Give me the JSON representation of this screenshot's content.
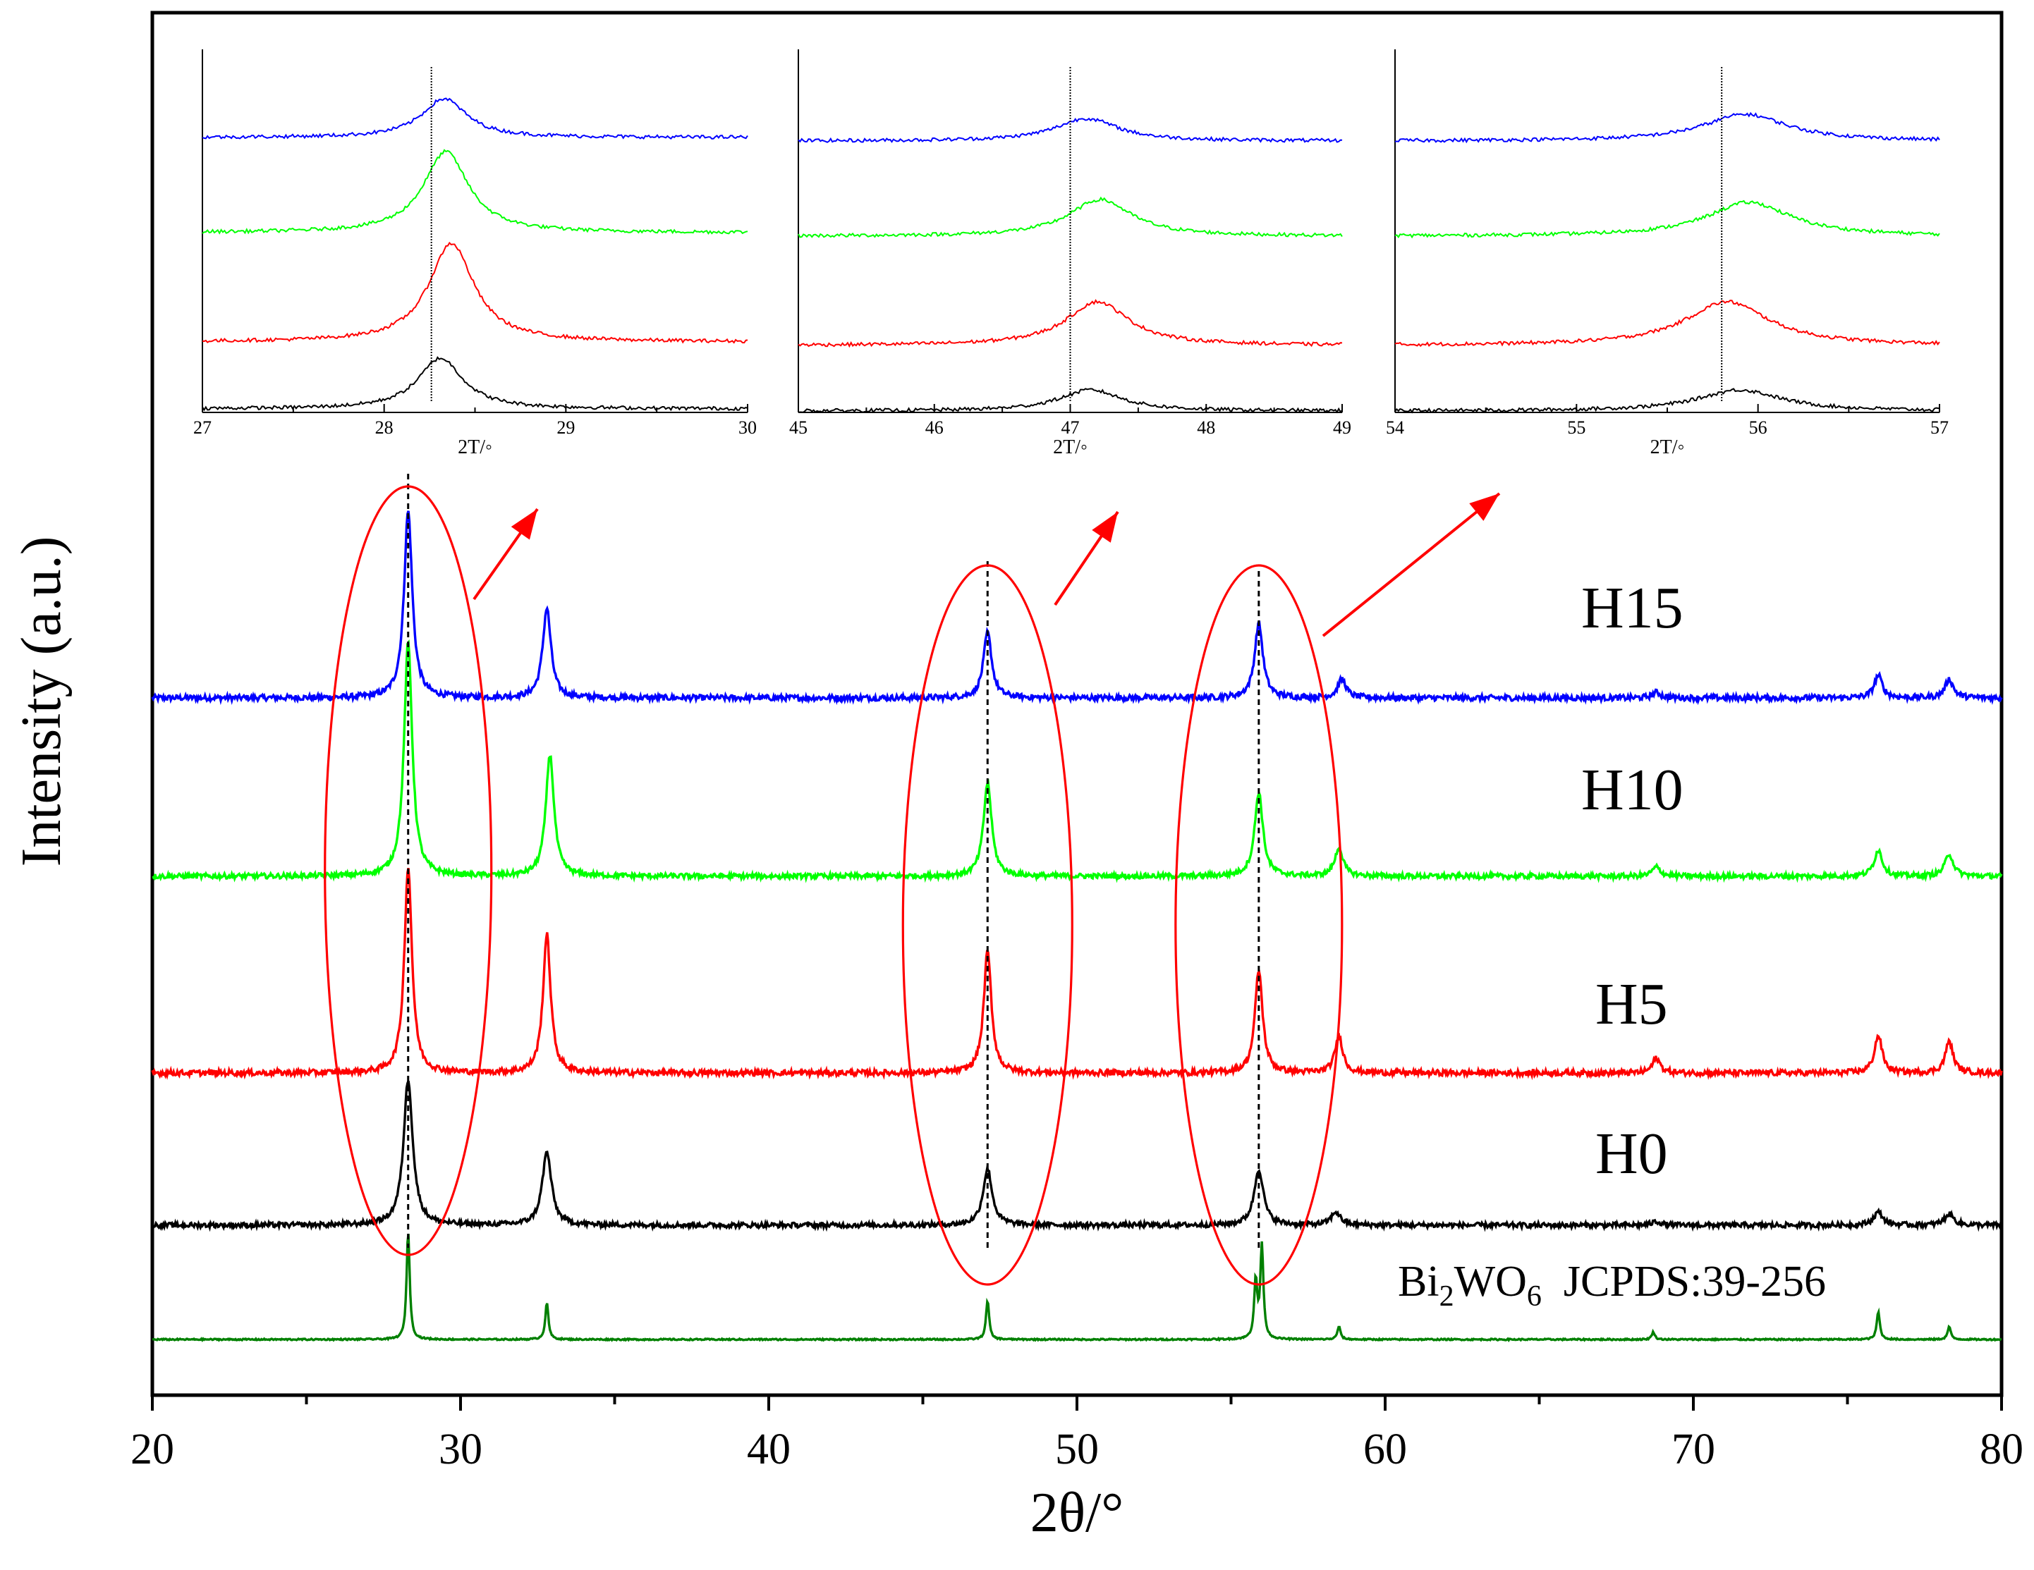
{
  "chart_data": {
    "type": "line",
    "title": "",
    "xlabel": "2θ/°",
    "ylabel": "Intensity (a.u.)",
    "xlim": [
      20,
      80
    ],
    "xticks": [
      20,
      30,
      40,
      50,
      60,
      70,
      80
    ],
    "series": [
      {
        "name": "H15",
        "color": "#0000ff",
        "peaks": [
          [
            28.3,
            1.0
          ],
          [
            32.8,
            0.48
          ],
          [
            47.1,
            0.35
          ],
          [
            55.9,
            0.4
          ],
          [
            58.6,
            0.1
          ],
          [
            68.8,
            0.03
          ],
          [
            76.0,
            0.12
          ],
          [
            78.3,
            0.1
          ]
        ]
      },
      {
        "name": "H10",
        "color": "#00ff00",
        "peaks": [
          [
            28.3,
            1.25
          ],
          [
            32.9,
            0.65
          ],
          [
            47.1,
            0.5
          ],
          [
            55.9,
            0.45
          ],
          [
            58.5,
            0.15
          ],
          [
            68.8,
            0.05
          ],
          [
            76.0,
            0.14
          ],
          [
            78.3,
            0.12
          ]
        ]
      },
      {
        "name": "H5",
        "color": "#ff0000",
        "peaks": [
          [
            28.3,
            1.1
          ],
          [
            32.8,
            0.74
          ],
          [
            47.1,
            0.65
          ],
          [
            55.9,
            0.55
          ],
          [
            58.5,
            0.2
          ],
          [
            68.8,
            0.08
          ],
          [
            76.0,
            0.2
          ],
          [
            78.3,
            0.17
          ]
        ]
      },
      {
        "name": "H0",
        "color": "#000000",
        "peaks": [
          [
            28.3,
            0.78
          ],
          [
            32.8,
            0.39
          ],
          [
            47.1,
            0.3
          ],
          [
            55.9,
            0.3
          ],
          [
            58.4,
            0.07
          ],
          [
            68.8,
            0.02
          ],
          [
            76.0,
            0.07
          ],
          [
            78.3,
            0.06
          ]
        ]
      },
      {
        "name": "Bi2WO6 JCPDS:39-256",
        "color": "#008000",
        "peaks": [
          [
            28.3,
            0.58
          ],
          [
            32.8,
            0.2
          ],
          [
            47.1,
            0.21
          ],
          [
            55.8,
            0.31
          ],
          [
            56.0,
            0.5
          ],
          [
            58.5,
            0.07
          ],
          [
            68.7,
            0.04
          ],
          [
            76.0,
            0.15
          ],
          [
            78.3,
            0.07
          ]
        ]
      }
    ],
    "labels": [
      "H15",
      "H10",
      "H5",
      "H0"
    ],
    "reference_label": {
      "base": "Bi",
      "sub1": "2",
      "mid": "WO",
      "sub2": "6",
      "tail": "  JCPDS:39-256"
    },
    "reference_lines": [
      28.3,
      47.1,
      55.9
    ],
    "insets": [
      {
        "xlim": [
          27,
          30
        ],
        "ticks": [
          27,
          28,
          29,
          30
        ],
        "ref_line": 28.26,
        "xlabel": "2T/◦",
        "peak_center": 28.3
      },
      {
        "xlim": [
          45,
          49
        ],
        "ticks": [
          45,
          46,
          47,
          48,
          49
        ],
        "ref_line": 47.0,
        "xlabel": "2T/◦",
        "peak_center": 47.1
      },
      {
        "xlim": [
          54,
          57
        ],
        "ticks": [
          54,
          55,
          56,
          57
        ],
        "ref_line": 55.8,
        "xlabel": "2T/◦",
        "peak_center": 55.85
      }
    ]
  },
  "colors": {
    "highlight": "#ff0000"
  }
}
